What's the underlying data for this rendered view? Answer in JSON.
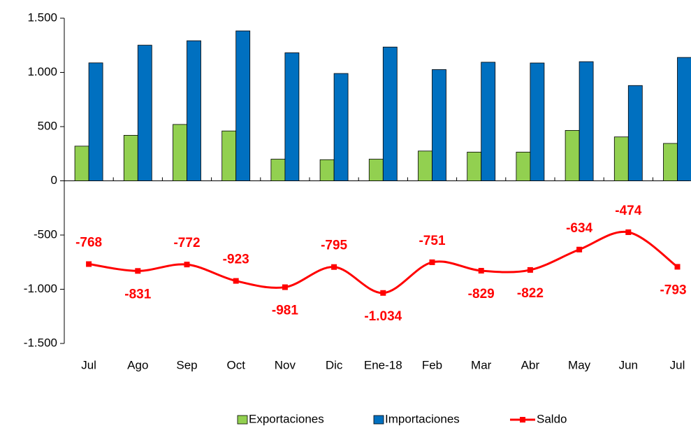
{
  "chart_data": {
    "type": "bar-line",
    "categories": [
      "Jul",
      "Ago",
      "Sep",
      "Oct",
      "Nov",
      "Dic",
      "Ene-18",
      "Feb",
      "Mar",
      "Abr",
      "May",
      "Jun",
      "Jul"
    ],
    "series": [
      {
        "name": "Exportaciones",
        "type": "bar",
        "color": "#92d050",
        "values": [
          320,
          420,
          520,
          460,
          200,
          195,
          200,
          275,
          265,
          265,
          465,
          405,
          345
        ]
      },
      {
        "name": "Importaciones",
        "type": "bar",
        "color": "#0070c0",
        "values": [
          1088,
          1251,
          1292,
          1383,
          1181,
          990,
          1234,
          1026,
          1094,
          1087,
          1099,
          879,
          1138
        ]
      },
      {
        "name": "Saldo",
        "type": "line",
        "color": "#ff0000",
        "values": [
          -768,
          -831,
          -772,
          -923,
          -981,
          -795,
          -1034,
          -751,
          -829,
          -822,
          -634,
          -474,
          -793
        ],
        "value_labels": [
          "-768",
          "-831",
          "-772",
          "-923",
          "-981",
          "-795",
          "-1.034",
          "-751",
          "-829",
          "-822",
          "-634",
          "-474",
          "-793"
        ]
      }
    ],
    "ylim": [
      -1500,
      1500
    ],
    "yticks": [
      {
        "value": -1500,
        "label": "-1.500"
      },
      {
        "value": -1000,
        "label": "-1.000"
      },
      -500,
      0,
      500,
      {
        "value": 1000,
        "label": "1.000"
      },
      {
        "value": 1500,
        "label": "1.500"
      }
    ],
    "legend": "bottom"
  }
}
